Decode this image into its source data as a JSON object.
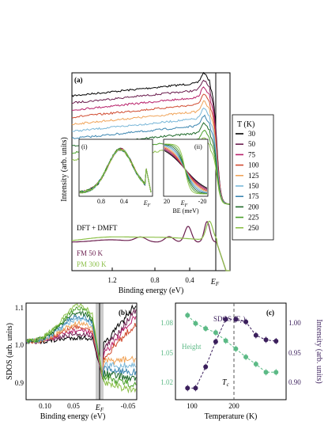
{
  "figure": {
    "curve_colors": [
      "#000000",
      "#6b1e4f",
      "#b8206a",
      "#d04a2f",
      "#f0a45a",
      "#7ab7d8",
      "#3c86b0",
      "#1f6a2a",
      "#4aa02a",
      "#8dc04a"
    ]
  },
  "chart_data": [
    {
      "type": "line",
      "panel_label": "(a)",
      "xlabel": "Binding energy (eV)",
      "ylabel": "Intensity (arb. units)",
      "x_ticks": [
        "1.2",
        "0.8",
        "0.4",
        "E_F"
      ],
      "xlim": [
        1.6,
        -0.1
      ],
      "legend_title": "T (K)",
      "legend_position": "right",
      "series": [
        {
          "name": "30",
          "color": "#000000",
          "offset": 10
        },
        {
          "name": "50",
          "color": "#6b1e4f",
          "offset": 9
        },
        {
          "name": "75",
          "color": "#b8206a",
          "offset": 8
        },
        {
          "name": "100",
          "color": "#d04a2f",
          "offset": 7
        },
        {
          "name": "125",
          "color": "#f0a45a",
          "offset": 6
        },
        {
          "name": "150",
          "color": "#7ab7d8",
          "offset": 5
        },
        {
          "name": "175",
          "color": "#3c86b0",
          "offset": 4
        },
        {
          "name": "200",
          "color": "#1f6a2a",
          "offset": 3
        },
        {
          "name": "225",
          "color": "#4aa02a",
          "offset": 2
        },
        {
          "name": "250",
          "color": "#8dc04a",
          "offset": 1
        }
      ],
      "theory_label": "DFT + DMFT",
      "theory_series": [
        {
          "name": "FM 50 K",
          "color": "#6b1e4f"
        },
        {
          "name": "PM 300 K",
          "color": "#8dc04a"
        }
      ],
      "insets": [
        {
          "label": "(i)",
          "x_ticks": [
            "0.8",
            "0.4",
            "E_F"
          ]
        },
        {
          "label": "(ii)",
          "x_ticks": [
            "20",
            "E_F",
            "-20"
          ],
          "xlabel": "BE (meV)"
        }
      ]
    },
    {
      "type": "line",
      "panel_label": "(b)",
      "xlabel": "Binding energy (eV)",
      "ylabel": "SDOS (arb. units)",
      "x_ticks": [
        "0.10",
        "0.05",
        "E_F",
        "-0.05"
      ],
      "y_ticks": [
        "1.1",
        "1.0",
        "0.9"
      ],
      "xlim": [
        0.13,
        -0.07
      ],
      "ylim": [
        0.86,
        1.11
      ]
    },
    {
      "type": "scatter",
      "panel_label": "(c)",
      "xlabel": "Temperature (K)",
      "ylabel_right": "Intensity (arb. units)",
      "x_ticks": [
        "100",
        "200"
      ],
      "y_ticks_left": [
        "1.08",
        "1.05",
        "1.02"
      ],
      "y_ticks_right": [
        "1.00",
        "0.95",
        "0.90"
      ],
      "xlim": [
        0,
        275
      ],
      "ylim_left": [
        1.0,
        1.095
      ],
      "ylim_right": [
        0.875,
        1.025
      ],
      "tc_label": "T_c",
      "tc_value": 200,
      "series": [
        {
          "name": "Height",
          "axis": "left",
          "color": "#5cba86",
          "x": [
            30,
            50,
            75,
            100,
            125,
            150,
            175,
            200,
            225,
            250
          ],
          "y": [
            1.083,
            1.075,
            1.07,
            1.066,
            1.058,
            1.05,
            1.042,
            1.035,
            1.027,
            1.027
          ]
        },
        {
          "name": "SDOS (E_F)",
          "axis": "right",
          "color": "#3b1f5c",
          "x": [
            30,
            50,
            75,
            100,
            125,
            150,
            175,
            200,
            225,
            250
          ],
          "y": [
            0.893,
            0.893,
            0.926,
            0.965,
            1.0,
            1.0,
            0.996,
            0.975,
            0.968,
            0.966
          ]
        }
      ]
    }
  ]
}
